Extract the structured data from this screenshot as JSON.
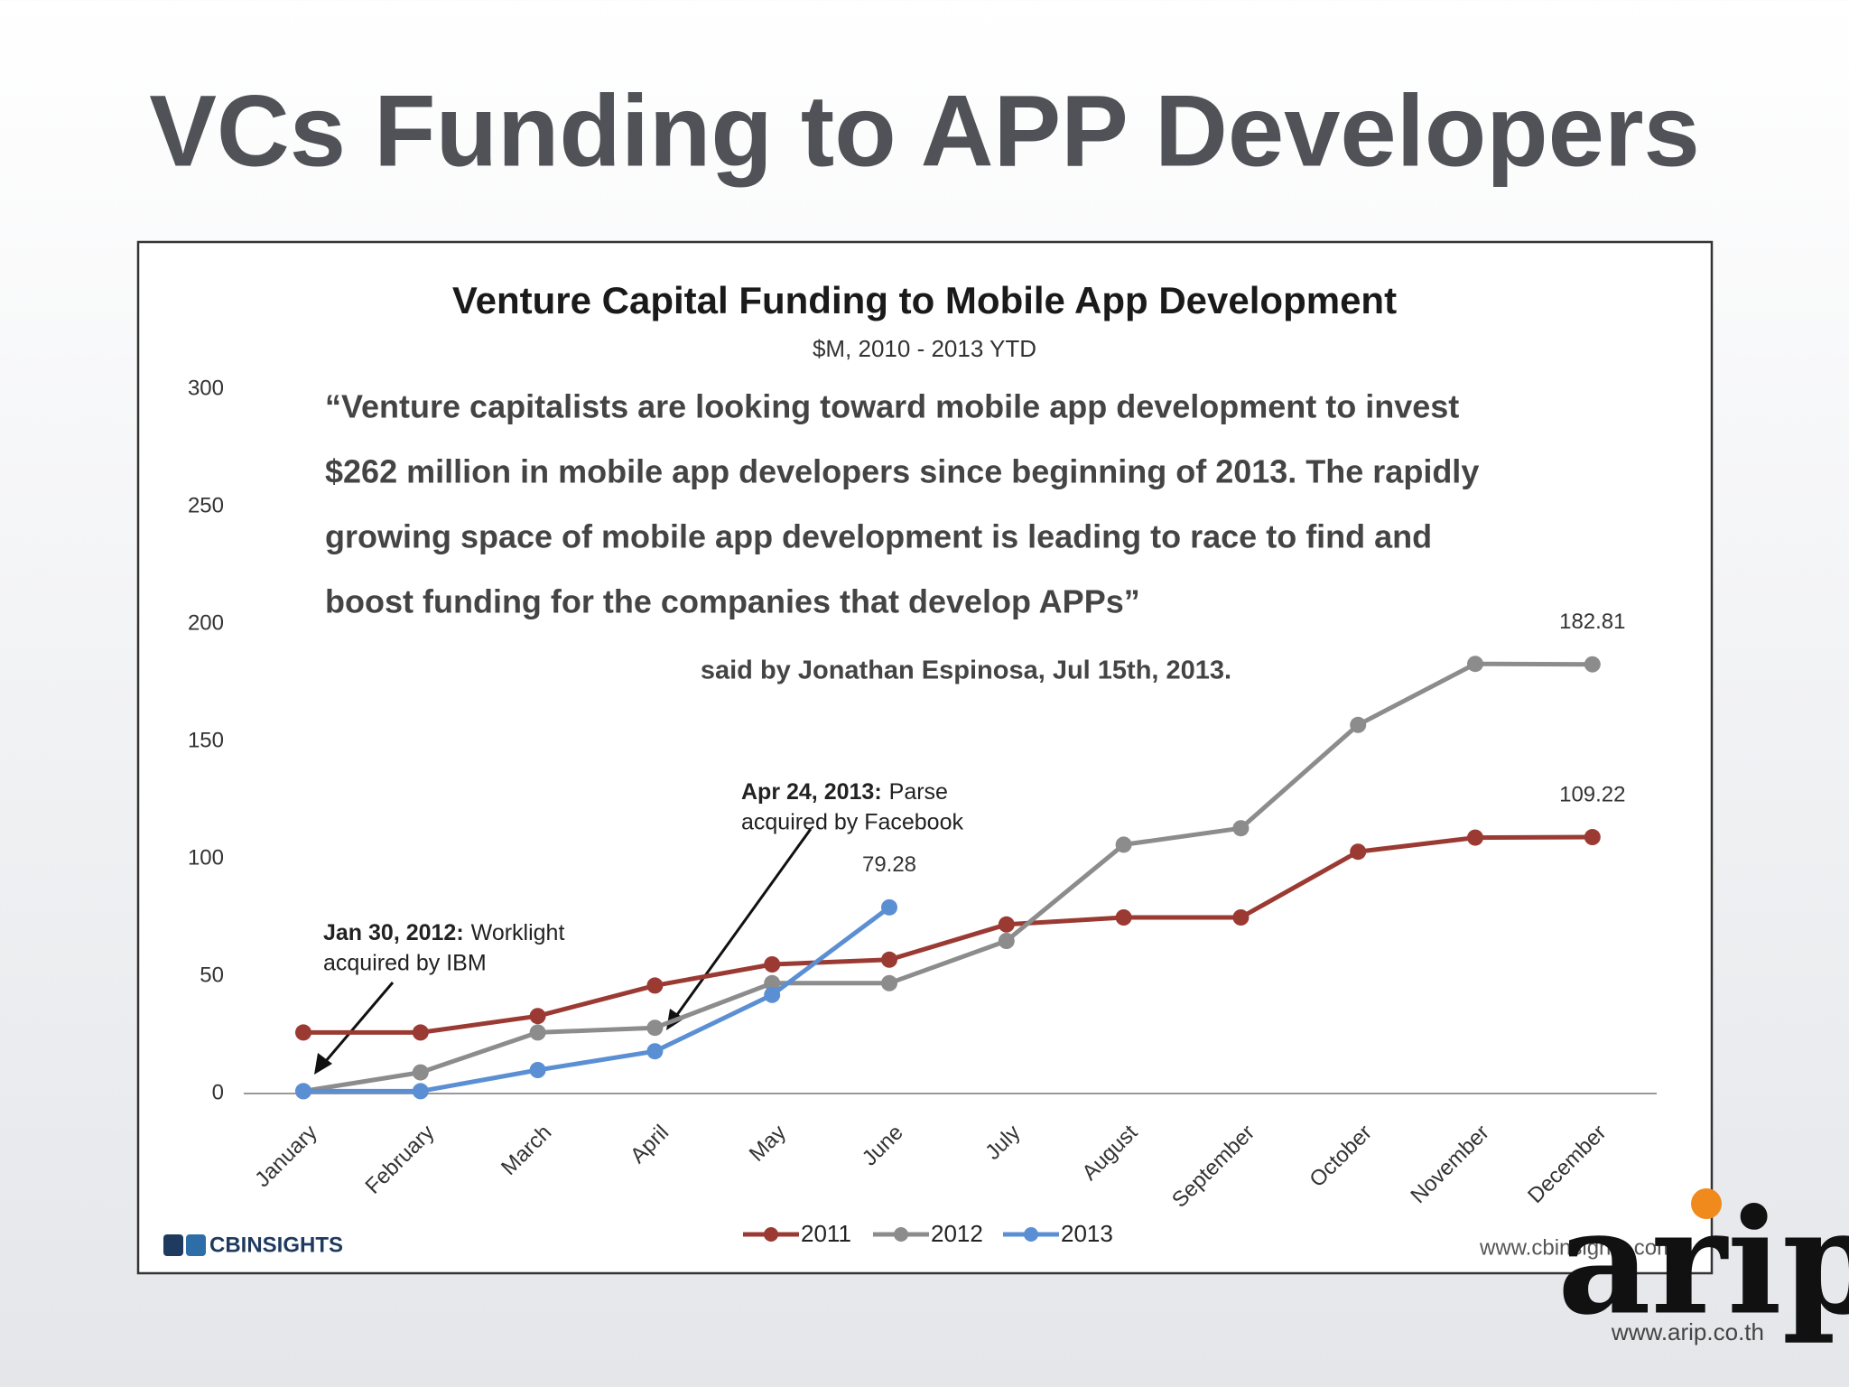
{
  "slide_title": "VCs Funding to APP Developers",
  "chart_data": {
    "type": "line",
    "title": "Venture Capital Funding to Mobile App Development",
    "subtitle": "$M, 2010 - 2013 YTD",
    "quote": [
      "“Venture capitalists are looking toward mobile app development to  invest",
      "$262 million in mobile app developers since beginning of 2013. The rapidly",
      "growing space of mobile app development is leading to race to find and",
      "boost funding for the companies that develop APPs”"
    ],
    "attribution": "said by Jonathan Espinosa, Jul 15th, 2013.",
    "annotations": [
      {
        "date": "Jan 30, 2012:",
        "lines": [
          "Worklight",
          "acquired by IBM"
        ]
      },
      {
        "date": "Apr 24, 2013:",
        "lines": [
          "Parse",
          "acquired by Facebook"
        ]
      }
    ],
    "categories": [
      "January",
      "February",
      "March",
      "April",
      "May",
      "June",
      "July",
      "August",
      "September",
      "October",
      "November",
      "December"
    ],
    "series": [
      {
        "name": "2011",
        "color": "#9b3a33",
        "values": [
          26,
          26,
          33,
          46,
          55,
          57,
          72,
          75,
          75,
          103,
          109,
          109.22
        ]
      },
      {
        "name": "2012",
        "color": "#8c8c8c",
        "values": [
          1,
          9,
          26,
          28,
          47,
          47,
          65,
          106,
          113,
          157,
          183,
          182.81
        ]
      },
      {
        "name": "2013",
        "color": "#5b8fd4",
        "values": [
          1,
          1,
          10,
          18,
          42,
          79.28,
          null,
          null,
          null,
          null,
          null,
          null
        ]
      }
    ],
    "labeled_points": [
      [
        0,
        11
      ],
      [
        1,
        11
      ],
      [
        2,
        5
      ]
    ],
    "ylim": [
      0,
      300
    ],
    "yticks": [
      0,
      50,
      100,
      150,
      200,
      250,
      300
    ],
    "grid": false,
    "legend": "bottom",
    "source_logo": "CBINSIGHTS",
    "source_url": "www.cbinsights.com"
  },
  "logo": {
    "name": "arip",
    "url": "www.arip.co.th"
  }
}
